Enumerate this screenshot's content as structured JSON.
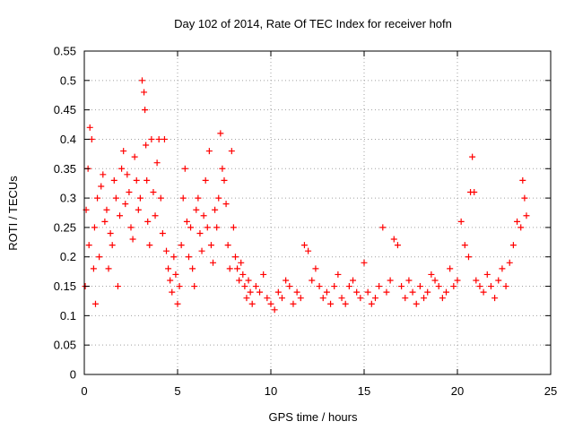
{
  "chart_data": {
    "type": "scatter",
    "title": "Day 102 of 2014, Rate Of TEC Index for receiver hofn",
    "xlabel": "GPS time / hours",
    "ylabel": "ROTI / TECUs",
    "xlim": [
      0,
      25
    ],
    "ylim": [
      0,
      0.55
    ],
    "x_ticks": [
      0,
      5,
      10,
      15,
      20,
      25
    ],
    "x_tick_labels": [
      "0",
      "5",
      "10",
      "15",
      "20",
      "25"
    ],
    "y_ticks": [
      0,
      0.05,
      0.1,
      0.15,
      0.2,
      0.25,
      0.3,
      0.35,
      0.4,
      0.45,
      0.5,
      0.55
    ],
    "y_tick_labels": [
      "0",
      "0.05",
      "0.1",
      "0.15",
      "0.2",
      "0.25",
      "0.3",
      "0.35",
      "0.4",
      "0.45",
      "0.5",
      "0.55"
    ],
    "grid": true,
    "marker": "+",
    "series": [
      {
        "name": "ROTI",
        "color": "#ff0000",
        "x": [
          0.05,
          0.1,
          0.2,
          0.25,
          0.3,
          0.4,
          0.5,
          0.55,
          0.6,
          0.7,
          0.8,
          0.9,
          1.0,
          1.1,
          1.2,
          1.3,
          1.4,
          1.5,
          1.6,
          1.7,
          1.8,
          1.9,
          2.0,
          2.1,
          2.2,
          2.3,
          2.4,
          2.5,
          2.6,
          2.7,
          2.8,
          2.9,
          3.0,
          3.1,
          3.2,
          3.25,
          3.3,
          3.35,
          3.4,
          3.5,
          3.6,
          3.7,
          3.8,
          3.9,
          4.0,
          4.1,
          4.2,
          4.3,
          4.4,
          4.5,
          4.6,
          4.7,
          4.8,
          4.9,
          5.0,
          5.1,
          5.2,
          5.3,
          5.4,
          5.5,
          5.6,
          5.7,
          5.8,
          5.9,
          6.0,
          6.1,
          6.2,
          6.3,
          6.4,
          6.5,
          6.6,
          6.7,
          6.8,
          6.9,
          7.0,
          7.1,
          7.2,
          7.3,
          7.4,
          7.5,
          7.6,
          7.7,
          7.8,
          7.9,
          8.0,
          8.1,
          8.2,
          8.3,
          8.4,
          8.5,
          8.6,
          8.7,
          8.8,
          8.9,
          9.0,
          9.2,
          9.4,
          9.6,
          9.8,
          10.0,
          10.2,
          10.4,
          10.6,
          10.8,
          11.0,
          11.2,
          11.4,
          11.6,
          11.8,
          12.0,
          12.2,
          12.4,
          12.6,
          12.8,
          13.0,
          13.2,
          13.4,
          13.6,
          13.8,
          14.0,
          14.2,
          14.4,
          14.6,
          14.8,
          15.0,
          15.2,
          15.4,
          15.6,
          15.8,
          16.0,
          16.2,
          16.4,
          16.6,
          16.8,
          17.0,
          17.2,
          17.4,
          17.6,
          17.8,
          18.0,
          18.2,
          18.4,
          18.6,
          18.8,
          19.0,
          19.2,
          19.4,
          19.6,
          19.8,
          20.0,
          20.2,
          20.4,
          20.6,
          20.7,
          20.8,
          20.9,
          21.0,
          21.2,
          21.4,
          21.6,
          21.8,
          22.0,
          22.2,
          22.4,
          22.6,
          22.8,
          23.0,
          23.2,
          23.4,
          23.5,
          23.6,
          23.7
        ],
        "y": [
          0.15,
          0.28,
          0.35,
          0.22,
          0.42,
          0.4,
          0.18,
          0.25,
          0.12,
          0.3,
          0.2,
          0.32,
          0.34,
          0.26,
          0.28,
          0.18,
          0.24,
          0.22,
          0.33,
          0.3,
          0.15,
          0.27,
          0.35,
          0.38,
          0.29,
          0.34,
          0.31,
          0.25,
          0.23,
          0.37,
          0.33,
          0.28,
          0.3,
          0.5,
          0.48,
          0.45,
          0.39,
          0.33,
          0.26,
          0.22,
          0.4,
          0.31,
          0.27,
          0.36,
          0.4,
          0.3,
          0.24,
          0.4,
          0.21,
          0.18,
          0.16,
          0.14,
          0.2,
          0.17,
          0.12,
          0.15,
          0.22,
          0.3,
          0.35,
          0.26,
          0.2,
          0.25,
          0.18,
          0.15,
          0.28,
          0.3,
          0.24,
          0.21,
          0.27,
          0.33,
          0.25,
          0.38,
          0.22,
          0.19,
          0.28,
          0.25,
          0.3,
          0.41,
          0.35,
          0.33,
          0.29,
          0.22,
          0.18,
          0.38,
          0.25,
          0.2,
          0.18,
          0.16,
          0.19,
          0.17,
          0.15,
          0.13,
          0.16,
          0.14,
          0.12,
          0.15,
          0.14,
          0.17,
          0.13,
          0.12,
          0.11,
          0.14,
          0.13,
          0.16,
          0.15,
          0.12,
          0.14,
          0.13,
          0.22,
          0.21,
          0.16,
          0.18,
          0.15,
          0.13,
          0.14,
          0.12,
          0.15,
          0.17,
          0.13,
          0.12,
          0.15,
          0.16,
          0.14,
          0.13,
          0.19,
          0.14,
          0.12,
          0.13,
          0.15,
          0.25,
          0.14,
          0.16,
          0.23,
          0.22,
          0.15,
          0.13,
          0.16,
          0.14,
          0.12,
          0.15,
          0.13,
          0.14,
          0.17,
          0.16,
          0.15,
          0.13,
          0.14,
          0.18,
          0.15,
          0.16,
          0.26,
          0.22,
          0.2,
          0.31,
          0.37,
          0.31,
          0.16,
          0.15,
          0.14,
          0.17,
          0.15,
          0.13,
          0.16,
          0.18,
          0.15,
          0.19,
          0.22,
          0.26,
          0.25,
          0.33,
          0.3,
          0.27
        ]
      }
    ]
  }
}
